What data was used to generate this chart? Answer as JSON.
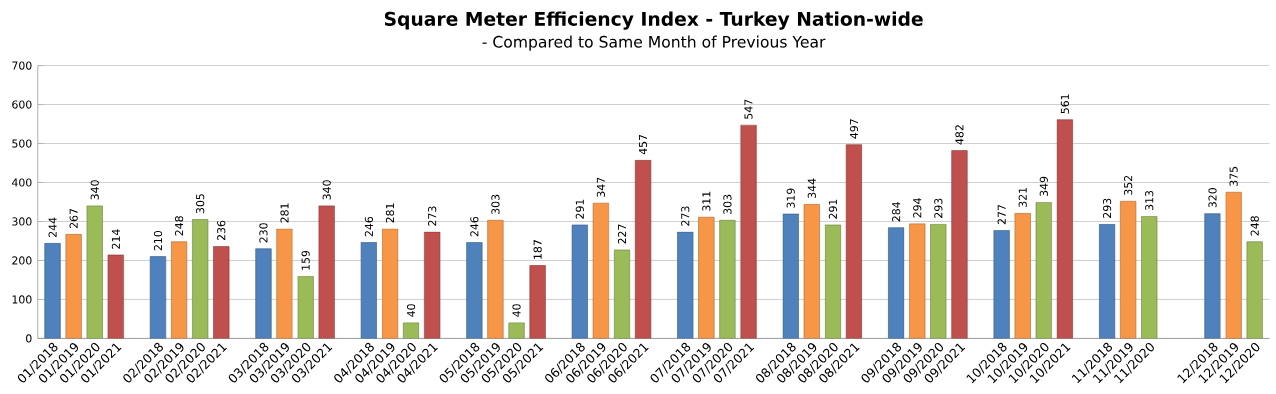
{
  "chart_data": {
    "type": "bar",
    "title": "Square Meter Efficiency Index - Turkey Nation-wide",
    "subtitle": "- Compared to Same Month of Previous Year",
    "categories": [
      "01/2018",
      "01/2019",
      "01/2020",
      "01/2021",
      null,
      "02/2018",
      "02/2019",
      "02/2020",
      "02/2021",
      null,
      "03/2018",
      "03/2019",
      "03/2020",
      "03/2021",
      null,
      "04/2018",
      "04/2019",
      "04/2020",
      "04/2021",
      null,
      "05/2018",
      "05/2019",
      "05/2020",
      "05/2021",
      null,
      "06/2018",
      "06/2019",
      "06/2020",
      "06/2021",
      null,
      "07/2018",
      "07/2019",
      "07/2020",
      "07/2021",
      null,
      "08/2018",
      "08/2019",
      "08/2020",
      "08/2021",
      null,
      "09/2018",
      "09/2019",
      "09/2020",
      "09/2021",
      null,
      "10/2018",
      "10/2019",
      "10/2020",
      "10/2021",
      null,
      "11/2018",
      "11/2019",
      "11/2020",
      null,
      null,
      "12/2018",
      "12/2019",
      "12/2020"
    ],
    "values": [
      244,
      267,
      340,
      214,
      null,
      210,
      248,
      305,
      236,
      null,
      230,
      281,
      159,
      340,
      null,
      246,
      281,
      40,
      273,
      null,
      246,
      303,
      40,
      187,
      null,
      291,
      347,
      227,
      457,
      null,
      273,
      311,
      303,
      547,
      null,
      319,
      344,
      291,
      497,
      null,
      284,
      294,
      293,
      482,
      null,
      277,
      321,
      349,
      561,
      null,
      293,
      352,
      313,
      null,
      null,
      320,
      375,
      248
    ],
    "colors": [
      "#4f81bd",
      "#f79646",
      "#9bbb59",
      "#c0504d",
      null,
      "#4f81bd",
      "#f79646",
      "#9bbb59",
      "#c0504d",
      null,
      "#4f81bd",
      "#f79646",
      "#9bbb59",
      "#c0504d",
      null,
      "#4f81bd",
      "#f79646",
      "#9bbb59",
      "#c0504d",
      null,
      "#4f81bd",
      "#f79646",
      "#9bbb59",
      "#c0504d",
      null,
      "#4f81bd",
      "#f79646",
      "#9bbb59",
      "#c0504d",
      null,
      "#4f81bd",
      "#f79646",
      "#9bbb59",
      "#c0504d",
      null,
      "#4f81bd",
      "#f79646",
      "#9bbb59",
      "#c0504d",
      null,
      "#4f81bd",
      "#f79646",
      "#9bbb59",
      "#c0504d",
      null,
      "#4f81bd",
      "#f79646",
      "#9bbb59",
      "#c0504d",
      null,
      "#4f81bd",
      "#f79646",
      "#9bbb59",
      null,
      null,
      "#4f81bd",
      "#f79646",
      "#9bbb59"
    ],
    "ylim": [
      0,
      700
    ],
    "yticks": [
      0,
      100,
      200,
      300,
      400,
      500,
      600,
      700
    ],
    "grid": "y",
    "data_labels": true
  }
}
